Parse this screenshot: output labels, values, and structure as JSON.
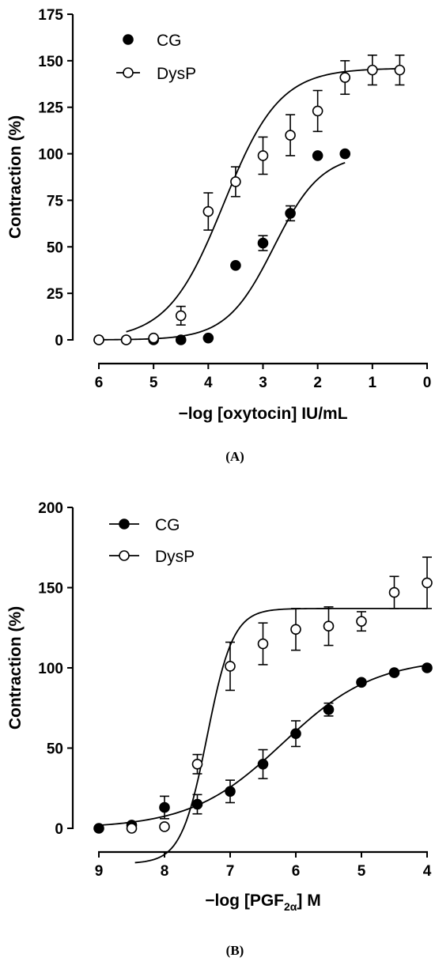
{
  "chart_data": [
    {
      "type": "scatter",
      "panel_label": "(A)",
      "xlabel_prefix": "−log [oxytocin] IU/mL",
      "xlabel_sub": "",
      "xlabel_suffix": "",
      "ylabel": "Contraction (%)",
      "xlim": [
        6,
        0
      ],
      "ylim": [
        0,
        175
      ],
      "xticks": [
        6,
        5,
        4,
        3,
        2,
        1,
        0
      ],
      "yticks": [
        0,
        25,
        50,
        75,
        100,
        125,
        150,
        175
      ],
      "legend_position": "top-left",
      "series": [
        {
          "name": "CG",
          "marker": "filled-circle",
          "legend_line": false,
          "x": [
            6,
            5.5,
            5,
            4.5,
            4,
            3.5,
            3,
            2.5,
            2,
            1.5
          ],
          "y": [
            0,
            0,
            0,
            0,
            1,
            40,
            52,
            68,
            99,
            100
          ],
          "err": [
            0,
            0,
            0,
            0,
            0,
            0,
            4,
            4,
            0,
            0
          ],
          "fit": {
            "bottom": 0,
            "top": 100,
            "logEC50": 2.8,
            "slope": 1.0,
            "x_from": 6,
            "x_to": 1.5
          }
        },
        {
          "name": "DysP",
          "marker": "open-circle",
          "legend_line": true,
          "x": [
            6,
            5.5,
            5,
            4.5,
            4,
            3.5,
            3,
            2.5,
            2,
            1.5,
            1,
            0.5
          ],
          "y": [
            0,
            0,
            1,
            13,
            69,
            85,
            99,
            110,
            123,
            141,
            145,
            145
          ],
          "err": [
            0,
            0,
            0,
            5,
            10,
            8,
            10,
            11,
            11,
            9,
            8,
            8
          ],
          "fit": {
            "bottom": 0,
            "top": 146,
            "logEC50": 3.72,
            "slope": 0.85,
            "x_from": 5.5,
            "x_to": 0.5
          }
        }
      ]
    },
    {
      "type": "scatter",
      "panel_label": "(B)",
      "xlabel_prefix": "−log [PGF",
      "xlabel_sub": "2α",
      "xlabel_suffix": "] M",
      "ylabel": "Contraction (%)",
      "xlim": [
        9,
        4
      ],
      "ylim": [
        0,
        200
      ],
      "xticks": [
        9,
        8,
        7,
        6,
        5,
        4
      ],
      "yticks": [
        0,
        50,
        100,
        150,
        200
      ],
      "legend_position": "top-left",
      "series": [
        {
          "name": "CG",
          "marker": "filled-circle",
          "legend_line": true,
          "x": [
            9,
            8.5,
            8,
            7.5,
            7,
            6.5,
            6,
            5.5,
            5,
            4.5,
            4
          ],
          "y": [
            0,
            2,
            13,
            15,
            23,
            40,
            59,
            74,
            91,
            97,
            100
          ],
          "err": [
            0,
            0,
            7,
            6,
            7,
            9,
            8,
            4,
            0,
            0,
            0
          ],
          "fit": {
            "bottom": 0,
            "top": 106,
            "logEC50": 6.2,
            "slope": 0.62,
            "x_from": 9,
            "x_to": 4
          }
        },
        {
          "name": "DysP",
          "marker": "open-circle",
          "legend_line": true,
          "x": [
            8.5,
            8,
            7.5,
            7,
            6.5,
            6,
            5.5,
            5,
            4.5,
            4
          ],
          "y": [
            0,
            1,
            40,
            101,
            115,
            124,
            126,
            129,
            147,
            153
          ],
          "err": [
            0,
            0,
            6,
            15,
            13,
            13,
            12,
            6,
            10,
            16
          ],
          "fit": {
            "bottom": -22,
            "top": 137,
            "logEC50": 7.35,
            "slope": 2.2,
            "x_from": 8.45,
            "x_to": 4
          }
        }
      ]
    }
  ]
}
